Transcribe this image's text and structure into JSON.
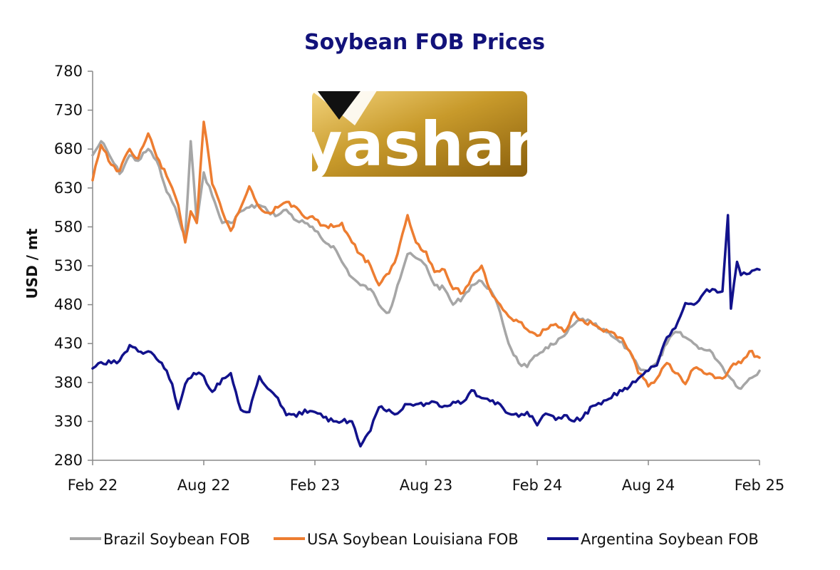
{
  "chart_data": {
    "type": "line",
    "title": "Soybean FOB Prices",
    "ylabel": "USD / mt",
    "xlabel": "",
    "ylim": [
      280,
      780
    ],
    "yticks": [
      280,
      330,
      380,
      430,
      480,
      530,
      580,
      630,
      680,
      730,
      780
    ],
    "xlim": [
      "2022-02",
      "2025-02"
    ],
    "xticks": [
      "Feb 22",
      "Aug 22",
      "Feb 23",
      "Aug 23",
      "Feb 24",
      "Aug 24",
      "Feb 25"
    ],
    "legend_position": "bottom",
    "grid": false,
    "series": [
      {
        "name": "Brazil Soybean FOB",
        "color": "#a6a6a6",
        "data": [
          [
            "2022-02-01",
            672
          ],
          [
            "2022-02-15",
            690
          ],
          [
            "2022-03-01",
            668
          ],
          [
            "2022-03-15",
            648
          ],
          [
            "2022-04-01",
            672
          ],
          [
            "2022-04-15",
            665
          ],
          [
            "2022-05-01",
            680
          ],
          [
            "2022-05-15",
            665
          ],
          [
            "2022-06-01",
            625
          ],
          [
            "2022-06-10",
            612
          ],
          [
            "2022-06-20",
            592
          ],
          [
            "2022-07-01",
            568
          ],
          [
            "2022-07-10",
            690
          ],
          [
            "2022-07-20",
            585
          ],
          [
            "2022-08-01",
            650
          ],
          [
            "2022-08-15",
            620
          ],
          [
            "2022-09-01",
            585
          ],
          [
            "2022-09-15",
            585
          ],
          [
            "2022-10-01",
            600
          ],
          [
            "2022-10-15",
            605
          ],
          [
            "2022-11-01",
            608
          ],
          [
            "2022-11-15",
            600
          ],
          [
            "2022-12-01",
            595
          ],
          [
            "2022-12-15",
            602
          ],
          [
            "2023-01-01",
            588
          ],
          [
            "2023-01-15",
            585
          ],
          [
            "2023-02-01",
            575
          ],
          [
            "2023-02-15",
            562
          ],
          [
            "2023-03-01",
            555
          ],
          [
            "2023-03-15",
            535
          ],
          [
            "2023-04-01",
            515
          ],
          [
            "2023-04-15",
            505
          ],
          [
            "2023-05-01",
            500
          ],
          [
            "2023-05-15",
            480
          ],
          [
            "2023-06-01",
            470
          ],
          [
            "2023-06-15",
            505
          ],
          [
            "2023-07-01",
            545
          ],
          [
            "2023-07-15",
            540
          ],
          [
            "2023-08-01",
            530
          ],
          [
            "2023-08-15",
            505
          ],
          [
            "2023-09-01",
            500
          ],
          [
            "2023-09-15",
            480
          ],
          [
            "2023-10-01",
            490
          ],
          [
            "2023-10-15",
            505
          ],
          [
            "2023-11-01",
            510
          ],
          [
            "2023-11-15",
            500
          ],
          [
            "2023-12-01",
            470
          ],
          [
            "2023-12-15",
            430
          ],
          [
            "2024-01-01",
            405
          ],
          [
            "2024-01-15",
            400
          ],
          [
            "2024-02-01",
            415
          ],
          [
            "2024-02-15",
            425
          ],
          [
            "2024-03-01",
            430
          ],
          [
            "2024-03-15",
            440
          ],
          [
            "2024-04-01",
            455
          ],
          [
            "2024-04-15",
            462
          ],
          [
            "2024-05-01",
            455
          ],
          [
            "2024-05-15",
            448
          ],
          [
            "2024-06-01",
            440
          ],
          [
            "2024-06-15",
            432
          ],
          [
            "2024-07-01",
            420
          ],
          [
            "2024-07-15",
            400
          ],
          [
            "2024-08-01",
            395
          ],
          [
            "2024-08-15",
            405
          ],
          [
            "2024-09-01",
            430
          ],
          [
            "2024-09-15",
            445
          ],
          [
            "2024-10-01",
            438
          ],
          [
            "2024-10-15",
            430
          ],
          [
            "2024-11-01",
            422
          ],
          [
            "2024-11-15",
            418
          ],
          [
            "2024-12-01",
            400
          ],
          [
            "2024-12-15",
            385
          ],
          [
            "2025-01-01",
            372
          ],
          [
            "2025-01-15",
            385
          ],
          [
            "2025-02-01",
            395
          ]
        ]
      },
      {
        "name": "USA Soybean Louisiana FOB",
        "color": "#ed7d31",
        "data": [
          [
            "2022-02-01",
            640
          ],
          [
            "2022-02-15",
            685
          ],
          [
            "2022-03-01",
            660
          ],
          [
            "2022-03-15",
            652
          ],
          [
            "2022-04-01",
            680
          ],
          [
            "2022-04-15",
            668
          ],
          [
            "2022-05-01",
            700
          ],
          [
            "2022-05-15",
            670
          ],
          [
            "2022-06-01",
            645
          ],
          [
            "2022-06-10",
            630
          ],
          [
            "2022-06-20",
            608
          ],
          [
            "2022-07-01",
            560
          ],
          [
            "2022-07-10",
            600
          ],
          [
            "2022-07-20",
            585
          ],
          [
            "2022-08-01",
            715
          ],
          [
            "2022-08-15",
            635
          ],
          [
            "2022-09-01",
            600
          ],
          [
            "2022-09-15",
            575
          ],
          [
            "2022-10-01",
            605
          ],
          [
            "2022-10-15",
            632
          ],
          [
            "2022-11-01",
            605
          ],
          [
            "2022-11-15",
            598
          ],
          [
            "2022-12-01",
            605
          ],
          [
            "2022-12-15",
            612
          ],
          [
            "2023-01-01",
            605
          ],
          [
            "2023-01-15",
            592
          ],
          [
            "2023-02-01",
            590
          ],
          [
            "2023-02-15",
            582
          ],
          [
            "2023-03-01",
            580
          ],
          [
            "2023-03-15",
            585
          ],
          [
            "2023-04-01",
            560
          ],
          [
            "2023-04-15",
            545
          ],
          [
            "2023-05-01",
            530
          ],
          [
            "2023-05-15",
            505
          ],
          [
            "2023-06-01",
            520
          ],
          [
            "2023-06-15",
            545
          ],
          [
            "2023-07-01",
            595
          ],
          [
            "2023-07-15",
            560
          ],
          [
            "2023-08-01",
            548
          ],
          [
            "2023-08-15",
            522
          ],
          [
            "2023-09-01",
            525
          ],
          [
            "2023-09-15",
            500
          ],
          [
            "2023-10-01",
            495
          ],
          [
            "2023-10-15",
            515
          ],
          [
            "2023-11-01",
            530
          ],
          [
            "2023-11-15",
            498
          ],
          [
            "2023-12-01",
            480
          ],
          [
            "2023-12-15",
            465
          ],
          [
            "2024-01-01",
            458
          ],
          [
            "2024-01-15",
            448
          ],
          [
            "2024-02-01",
            440
          ],
          [
            "2024-02-15",
            448
          ],
          [
            "2024-03-01",
            455
          ],
          [
            "2024-03-15",
            445
          ],
          [
            "2024-04-01",
            470
          ],
          [
            "2024-04-15",
            460
          ],
          [
            "2024-05-01",
            455
          ],
          [
            "2024-05-15",
            448
          ],
          [
            "2024-06-01",
            445
          ],
          [
            "2024-06-15",
            438
          ],
          [
            "2024-07-01",
            420
          ],
          [
            "2024-07-15",
            392
          ],
          [
            "2024-08-01",
            375
          ],
          [
            "2024-08-15",
            385
          ],
          [
            "2024-09-01",
            405
          ],
          [
            "2024-09-15",
            392
          ],
          [
            "2024-10-01",
            378
          ],
          [
            "2024-10-15",
            398
          ],
          [
            "2024-11-01",
            392
          ],
          [
            "2024-11-15",
            390
          ],
          [
            "2024-12-01",
            385
          ],
          [
            "2024-12-15",
            400
          ],
          [
            "2025-01-01",
            405
          ],
          [
            "2025-01-15",
            420
          ],
          [
            "2025-02-01",
            412
          ]
        ]
      },
      {
        "name": "Argentina Soybean FOB",
        "color": "#12128c",
        "data": [
          [
            "2022-02-01",
            398
          ],
          [
            "2022-02-15",
            406
          ],
          [
            "2022-03-01",
            405
          ],
          [
            "2022-03-15",
            408
          ],
          [
            "2022-04-01",
            428
          ],
          [
            "2022-04-15",
            420
          ],
          [
            "2022-05-01",
            420
          ],
          [
            "2022-05-15",
            410
          ],
          [
            "2022-06-01",
            395
          ],
          [
            "2022-06-10",
            378
          ],
          [
            "2022-06-20",
            346
          ],
          [
            "2022-07-01",
            378
          ],
          [
            "2022-07-15",
            392
          ],
          [
            "2022-08-01",
            388
          ],
          [
            "2022-08-15",
            368
          ],
          [
            "2022-09-01",
            385
          ],
          [
            "2022-09-15",
            392
          ],
          [
            "2022-10-01",
            345
          ],
          [
            "2022-10-15",
            342
          ],
          [
            "2022-11-01",
            388
          ],
          [
            "2022-11-15",
            372
          ],
          [
            "2022-12-01",
            360
          ],
          [
            "2022-12-15",
            338
          ],
          [
            "2023-01-01",
            336
          ],
          [
            "2023-01-15",
            345
          ],
          [
            "2023-02-01",
            342
          ],
          [
            "2023-02-15",
            335
          ],
          [
            "2023-03-01",
            330
          ],
          [
            "2023-03-15",
            330
          ],
          [
            "2023-04-01",
            330
          ],
          [
            "2023-04-15",
            298
          ],
          [
            "2023-05-01",
            318
          ],
          [
            "2023-05-15",
            348
          ],
          [
            "2023-06-01",
            345
          ],
          [
            "2023-06-15",
            340
          ],
          [
            "2023-07-01",
            352
          ],
          [
            "2023-07-15",
            352
          ],
          [
            "2023-08-01",
            353
          ],
          [
            "2023-08-15",
            355
          ],
          [
            "2023-09-01",
            350
          ],
          [
            "2023-09-15",
            355
          ],
          [
            "2023-10-01",
            355
          ],
          [
            "2023-10-15",
            370
          ],
          [
            "2023-11-01",
            360
          ],
          [
            "2023-11-15",
            356
          ],
          [
            "2023-12-01",
            352
          ],
          [
            "2023-12-15",
            340
          ],
          [
            "2024-01-01",
            336
          ],
          [
            "2024-01-15",
            342
          ],
          [
            "2024-02-01",
            325
          ],
          [
            "2024-02-15",
            340
          ],
          [
            "2024-03-01",
            332
          ],
          [
            "2024-03-15",
            338
          ],
          [
            "2024-04-01",
            330
          ],
          [
            "2024-04-15",
            335
          ],
          [
            "2024-05-01",
            350
          ],
          [
            "2024-05-15",
            352
          ],
          [
            "2024-06-01",
            360
          ],
          [
            "2024-06-15",
            370
          ],
          [
            "2024-07-01",
            375
          ],
          [
            "2024-07-15",
            385
          ],
          [
            "2024-08-01",
            395
          ],
          [
            "2024-08-15",
            402
          ],
          [
            "2024-09-01",
            438
          ],
          [
            "2024-09-15",
            450
          ],
          [
            "2024-10-01",
            482
          ],
          [
            "2024-10-15",
            480
          ],
          [
            "2024-11-01",
            495
          ],
          [
            "2024-11-15",
            500
          ],
          [
            "2024-12-01",
            497
          ],
          [
            "2024-12-10",
            595
          ],
          [
            "2024-12-15",
            475
          ],
          [
            "2024-12-25",
            535
          ],
          [
            "2025-01-01",
            518
          ],
          [
            "2025-01-15",
            520
          ],
          [
            "2025-02-01",
            525
          ]
        ]
      }
    ]
  },
  "watermark": {
    "brand": "yashar"
  }
}
